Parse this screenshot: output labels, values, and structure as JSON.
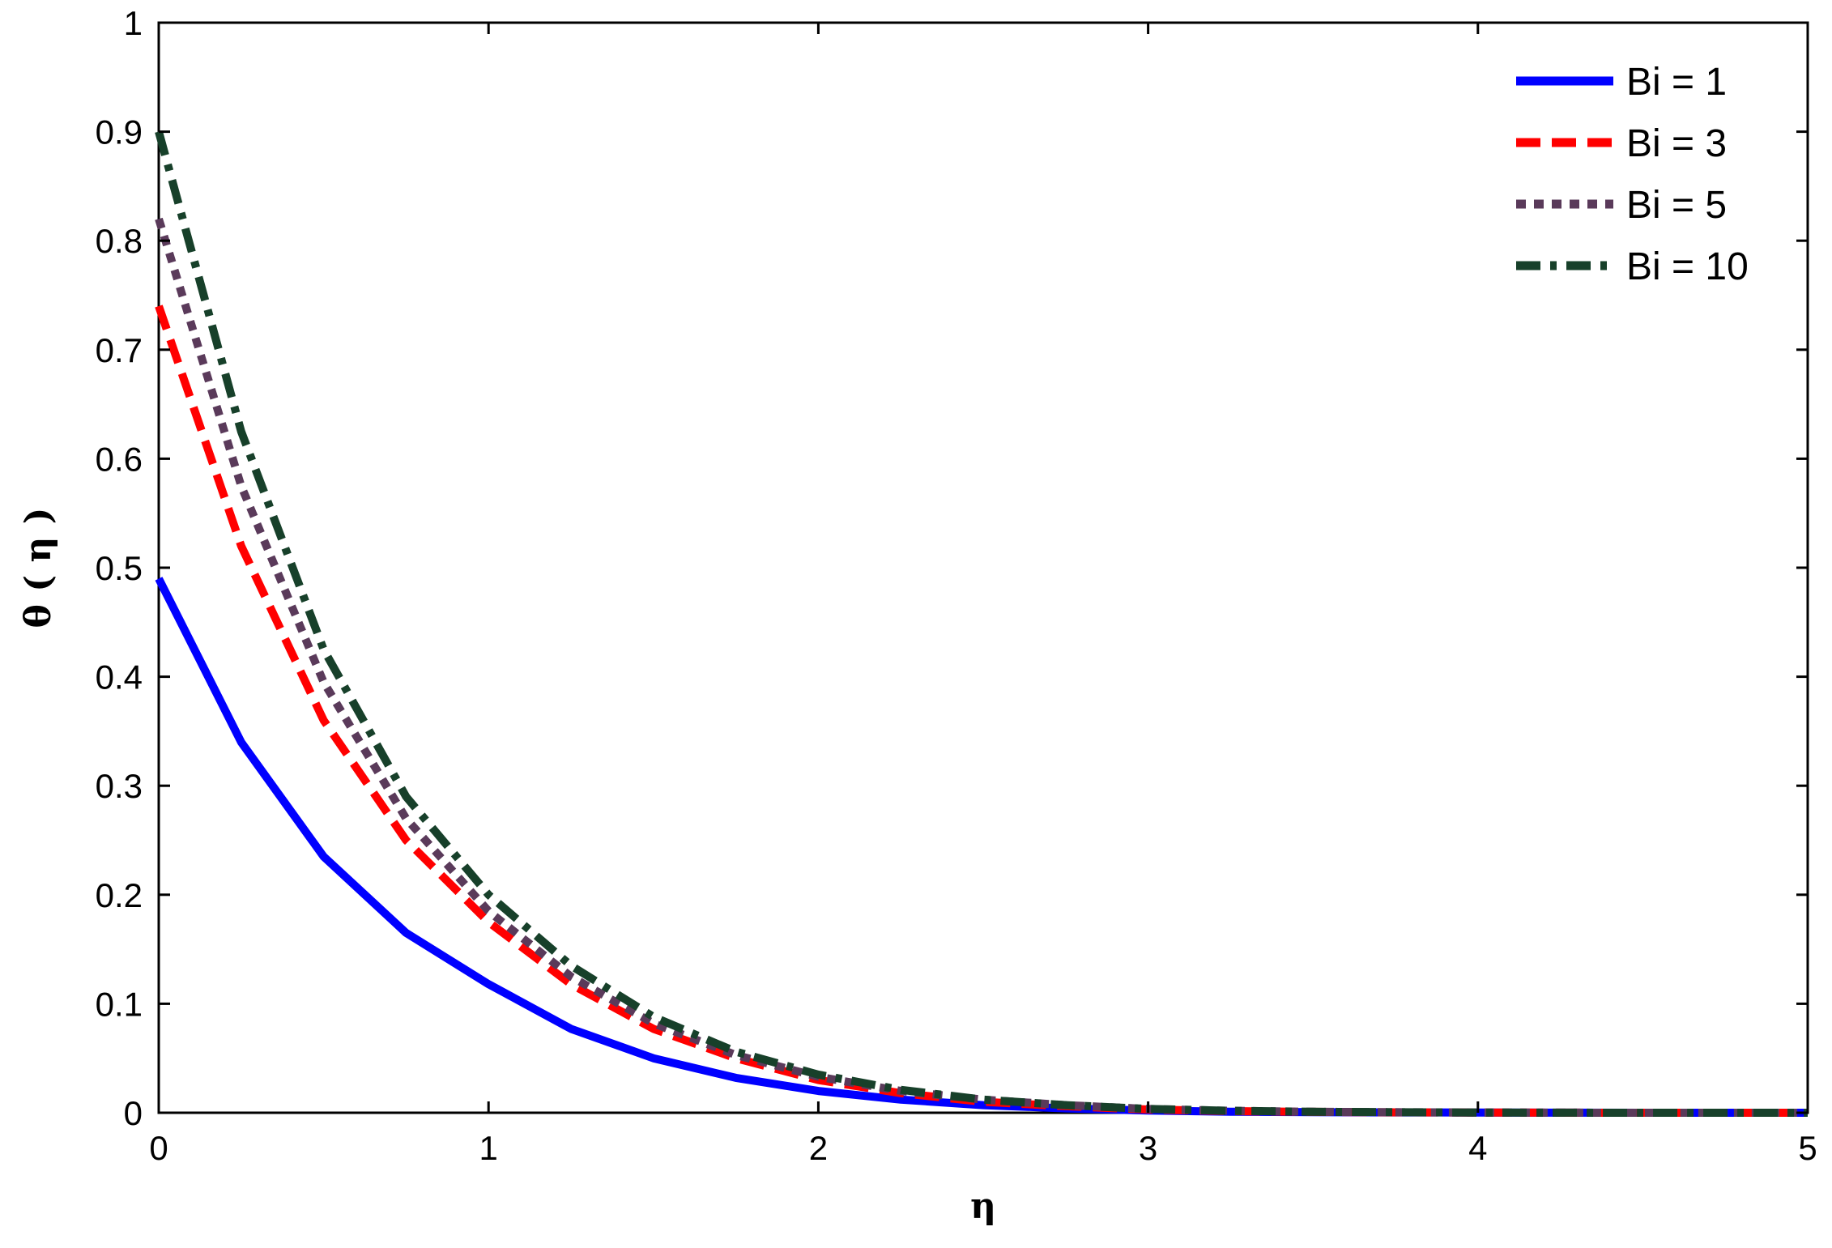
{
  "chart_data": {
    "type": "line",
    "xlabel": "η",
    "ylabel": "θ ( η )",
    "xlim": [
      0,
      5
    ],
    "ylim": [
      0,
      1
    ],
    "xticks": [
      0,
      1,
      2,
      3,
      4,
      5
    ],
    "yticks": [
      0,
      0.1,
      0.2,
      0.3,
      0.4,
      0.5,
      0.6,
      0.7,
      0.8,
      0.9,
      1
    ],
    "grid": false,
    "legend_position": "top-right",
    "x": [
      0,
      0.25,
      0.5,
      0.75,
      1,
      1.25,
      1.5,
      1.75,
      2,
      2.25,
      2.5,
      2.75,
      3,
      3.25,
      3.5,
      3.75,
      4,
      4.25,
      4.5,
      4.75,
      5
    ],
    "series": [
      {
        "name": "Bi = 1",
        "color": "#0000ff",
        "dash": "solid",
        "values": [
          0.49,
          0.34,
          0.235,
          0.165,
          0.118,
          0.077,
          0.05,
          0.032,
          0.02,
          0.012,
          0.007,
          0.004,
          0.002,
          0.001,
          0.0006,
          0.0003,
          0.0002,
          0.0001,
          0,
          0,
          0
        ]
      },
      {
        "name": "Bi = 3",
        "color": "#ff0000",
        "dash": "dashed",
        "values": [
          0.74,
          0.52,
          0.36,
          0.25,
          0.175,
          0.118,
          0.077,
          0.05,
          0.03,
          0.018,
          0.01,
          0.006,
          0.003,
          0.0015,
          0.0008,
          0.0004,
          0.0002,
          0.0001,
          0,
          0,
          0
        ]
      },
      {
        "name": "Bi = 5",
        "color": "#5a3a5a",
        "dash": "dotted",
        "values": [
          0.82,
          0.575,
          0.395,
          0.27,
          0.185,
          0.125,
          0.082,
          0.053,
          0.033,
          0.02,
          0.012,
          0.007,
          0.0035,
          0.0018,
          0.0009,
          0.0005,
          0.0002,
          0.0001,
          0,
          0,
          0
        ]
      },
      {
        "name": "Bi = 10",
        "color": "#17402a",
        "dash": "dashdot",
        "values": [
          0.9,
          0.625,
          0.425,
          0.29,
          0.2,
          0.135,
          0.088,
          0.056,
          0.035,
          0.021,
          0.012,
          0.007,
          0.0035,
          0.0018,
          0.0009,
          0.0005,
          0.0002,
          0.0001,
          0,
          0,
          0
        ]
      }
    ]
  }
}
